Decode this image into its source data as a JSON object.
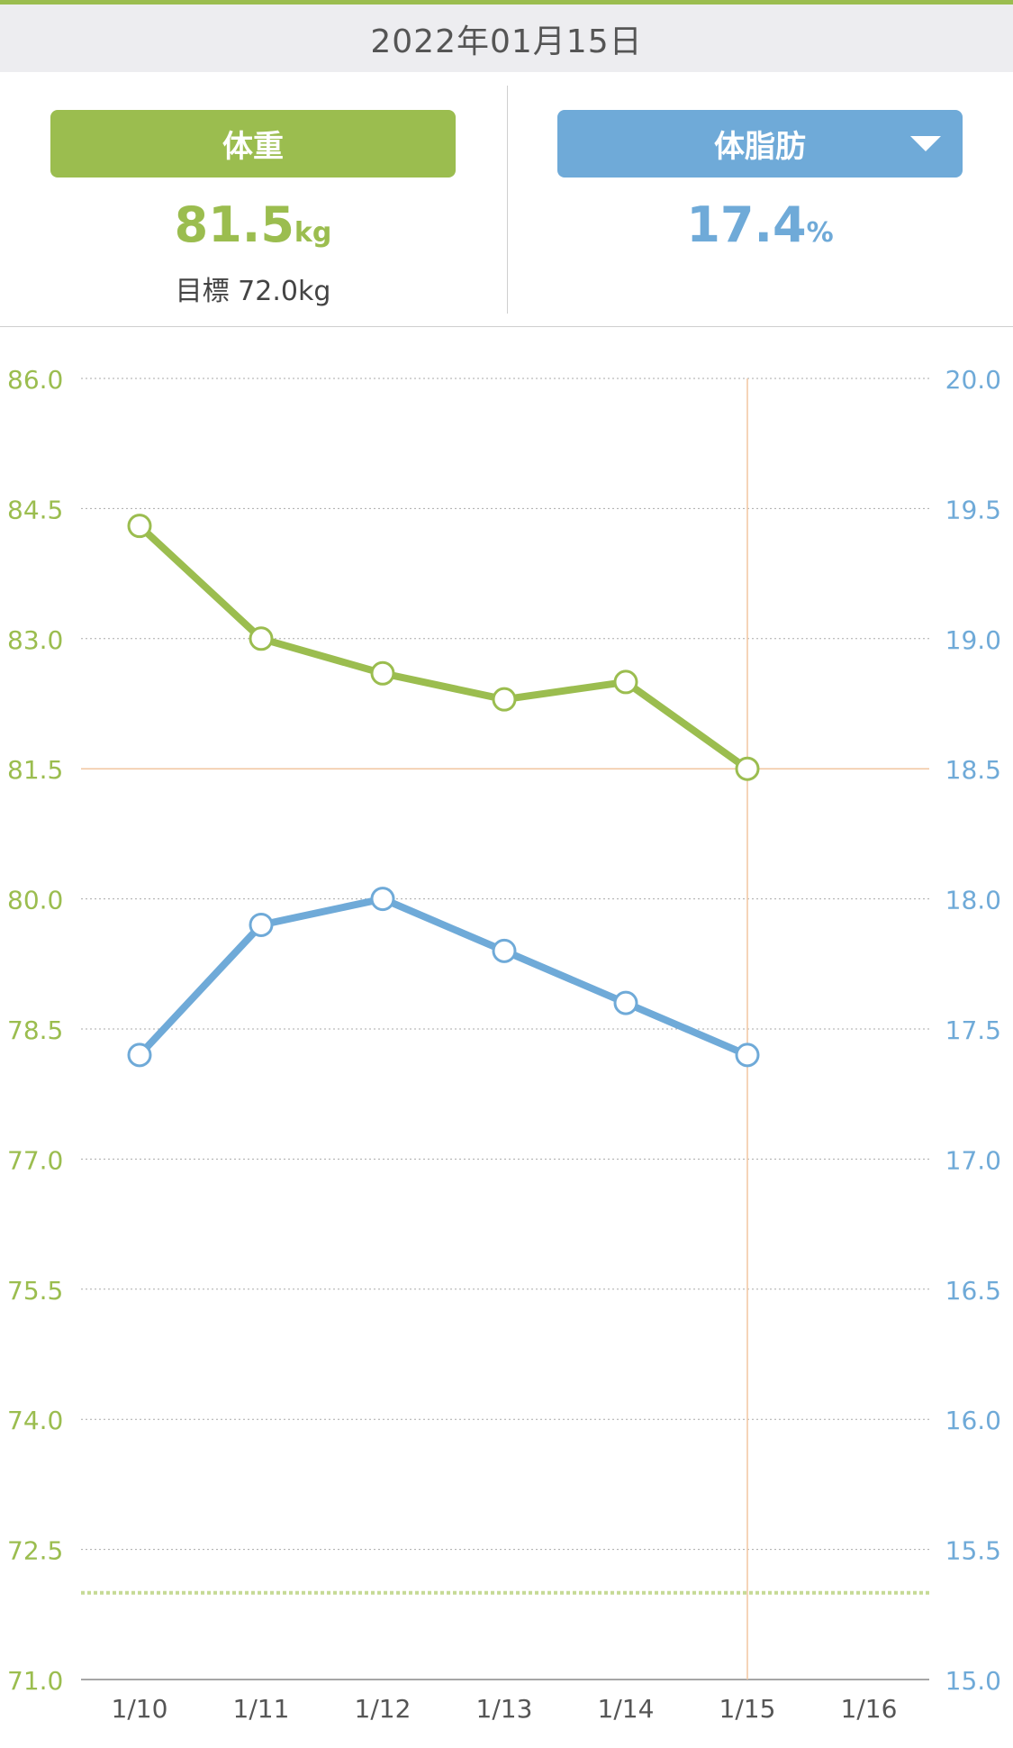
{
  "header": {
    "date": "2022年01月15日"
  },
  "weight_panel": {
    "label": "体重",
    "value": "81.5",
    "unit": "kg",
    "goal_label": "目標",
    "goal_value": "72.0kg"
  },
  "fat_panel": {
    "label": "体脂肪",
    "value": "17.4",
    "unit": "%",
    "dropdown_icon": "triangle-down-icon"
  },
  "colors": {
    "weight": "#9bbd4f",
    "fat": "#6faad8",
    "marker_line": "#f2c6a0",
    "date_bar_bg": "#ededf0"
  },
  "chart_data": {
    "type": "line",
    "categories": [
      "1/10",
      "1/11",
      "1/12",
      "1/13",
      "1/14",
      "1/15",
      "1/16"
    ],
    "left_axis": {
      "ylim": [
        71.0,
        86.0
      ],
      "ticks": [
        "86.0",
        "84.5",
        "83.0",
        "81.5",
        "80.0",
        "78.5",
        "77.0",
        "75.5",
        "74.0",
        "72.5",
        "71.0"
      ]
    },
    "right_axis": {
      "ylim": [
        15.0,
        20.0
      ],
      "ticks": [
        "20.0",
        "19.5",
        "19.0",
        "18.5",
        "18.0",
        "17.5",
        "17.0",
        "16.5",
        "16.0",
        "15.5",
        "15.0"
      ]
    },
    "series": [
      {
        "name": "体重",
        "axis": "left",
        "values": [
          84.3,
          83.0,
          82.6,
          82.3,
          82.5,
          81.5,
          null
        ]
      },
      {
        "name": "体脂肪",
        "axis": "right",
        "values": [
          17.4,
          17.9,
          18.0,
          17.8,
          17.6,
          17.4,
          null
        ]
      }
    ],
    "goal_line": 72.0,
    "selected_category": "1/15",
    "selected_value": 81.5,
    "grid": true
  }
}
